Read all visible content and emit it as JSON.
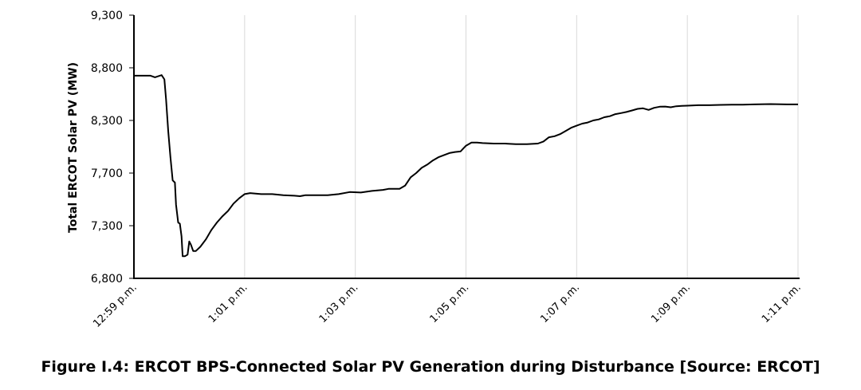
{
  "chart_data": {
    "type": "line",
    "title": "",
    "ylabel": "Total ERCOT Solar PV (MW)",
    "xlabel": "",
    "y_ticks": [
      "6,800",
      "7,300",
      "7,700",
      "8,300",
      "8,800",
      "9,300"
    ],
    "x_ticks": [
      "12:59 p.m.",
      "1:01 p.m.",
      "1:03 p.m.",
      "1:05 p.m.",
      "1:07 p.m.",
      "1:09 p.m.",
      "1:11 p.m."
    ],
    "x_unit": "minutes after 12:59 p.m.",
    "xlim": [
      0,
      12
    ],
    "ylim": [
      6800,
      9300
    ],
    "grid": "vertical",
    "series": [
      {
        "values": [
          [
            0,
            8725
          ],
          [
            0.15,
            8725
          ],
          [
            0.3,
            8725
          ],
          [
            0.38,
            8710
          ],
          [
            0.5,
            8730
          ],
          [
            0.55,
            8690
          ],
          [
            0.58,
            8500
          ],
          [
            0.62,
            8200
          ],
          [
            0.66,
            7950
          ],
          [
            0.7,
            7730
          ],
          [
            0.74,
            7710
          ],
          [
            0.76,
            7500
          ],
          [
            0.8,
            7330
          ],
          [
            0.83,
            7320
          ],
          [
            0.86,
            7200
          ],
          [
            0.88,
            7010
          ],
          [
            0.92,
            7010
          ],
          [
            0.97,
            7025
          ],
          [
            1.0,
            7150
          ],
          [
            1.03,
            7120
          ],
          [
            1.07,
            7060
          ],
          [
            1.12,
            7060
          ],
          [
            1.2,
            7100
          ],
          [
            1.3,
            7170
          ],
          [
            1.4,
            7260
          ],
          [
            1.5,
            7330
          ],
          [
            1.6,
            7390
          ],
          [
            1.7,
            7440
          ],
          [
            1.8,
            7510
          ],
          [
            1.9,
            7560
          ],
          [
            2.0,
            7600
          ],
          [
            2.1,
            7610
          ],
          [
            2.2,
            7605
          ],
          [
            2.3,
            7600
          ],
          [
            2.5,
            7600
          ],
          [
            2.7,
            7590
          ],
          [
            2.9,
            7585
          ],
          [
            3.0,
            7580
          ],
          [
            3.1,
            7590
          ],
          [
            3.3,
            7590
          ],
          [
            3.5,
            7590
          ],
          [
            3.7,
            7600
          ],
          [
            3.9,
            7620
          ],
          [
            4.1,
            7615
          ],
          [
            4.3,
            7630
          ],
          [
            4.5,
            7640
          ],
          [
            4.6,
            7650
          ],
          [
            4.8,
            7650
          ],
          [
            4.9,
            7680
          ],
          [
            5.0,
            7760
          ],
          [
            5.1,
            7800
          ],
          [
            5.2,
            7850
          ],
          [
            5.3,
            7880
          ],
          [
            5.4,
            7920
          ],
          [
            5.5,
            7950
          ],
          [
            5.6,
            7970
          ],
          [
            5.7,
            7990
          ],
          [
            5.8,
            8000
          ],
          [
            5.9,
            8005
          ],
          [
            6.0,
            8060
          ],
          [
            6.1,
            8090
          ],
          [
            6.2,
            8090
          ],
          [
            6.3,
            8085
          ],
          [
            6.5,
            8080
          ],
          [
            6.7,
            8080
          ],
          [
            6.9,
            8075
          ],
          [
            7.1,
            8075
          ],
          [
            7.3,
            8080
          ],
          [
            7.4,
            8100
          ],
          [
            7.5,
            8140
          ],
          [
            7.6,
            8150
          ],
          [
            7.7,
            8170
          ],
          [
            7.8,
            8200
          ],
          [
            7.9,
            8230
          ],
          [
            8.0,
            8250
          ],
          [
            8.1,
            8270
          ],
          [
            8.2,
            8280
          ],
          [
            8.3,
            8300
          ],
          [
            8.4,
            8310
          ],
          [
            8.5,
            8330
          ],
          [
            8.6,
            8340
          ],
          [
            8.7,
            8360
          ],
          [
            8.8,
            8370
          ],
          [
            8.9,
            8380
          ],
          [
            9.0,
            8395
          ],
          [
            9.1,
            8410
          ],
          [
            9.2,
            8415
          ],
          [
            9.3,
            8400
          ],
          [
            9.4,
            8420
          ],
          [
            9.5,
            8430
          ],
          [
            9.6,
            8432
          ],
          [
            9.7,
            8425
          ],
          [
            9.8,
            8435
          ],
          [
            9.9,
            8438
          ],
          [
            10.0,
            8440
          ],
          [
            10.2,
            8445
          ],
          [
            10.4,
            8445
          ],
          [
            10.6,
            8448
          ],
          [
            10.8,
            8450
          ],
          [
            11.0,
            8450
          ],
          [
            11.2,
            8452
          ],
          [
            11.5,
            8455
          ],
          [
            11.8,
            8452
          ],
          [
            12.0,
            8452
          ]
        ]
      }
    ]
  },
  "caption": "Figure I.4: ERCOT BPS-Connected Solar PV Generation during Disturbance [Source: ERCOT]"
}
